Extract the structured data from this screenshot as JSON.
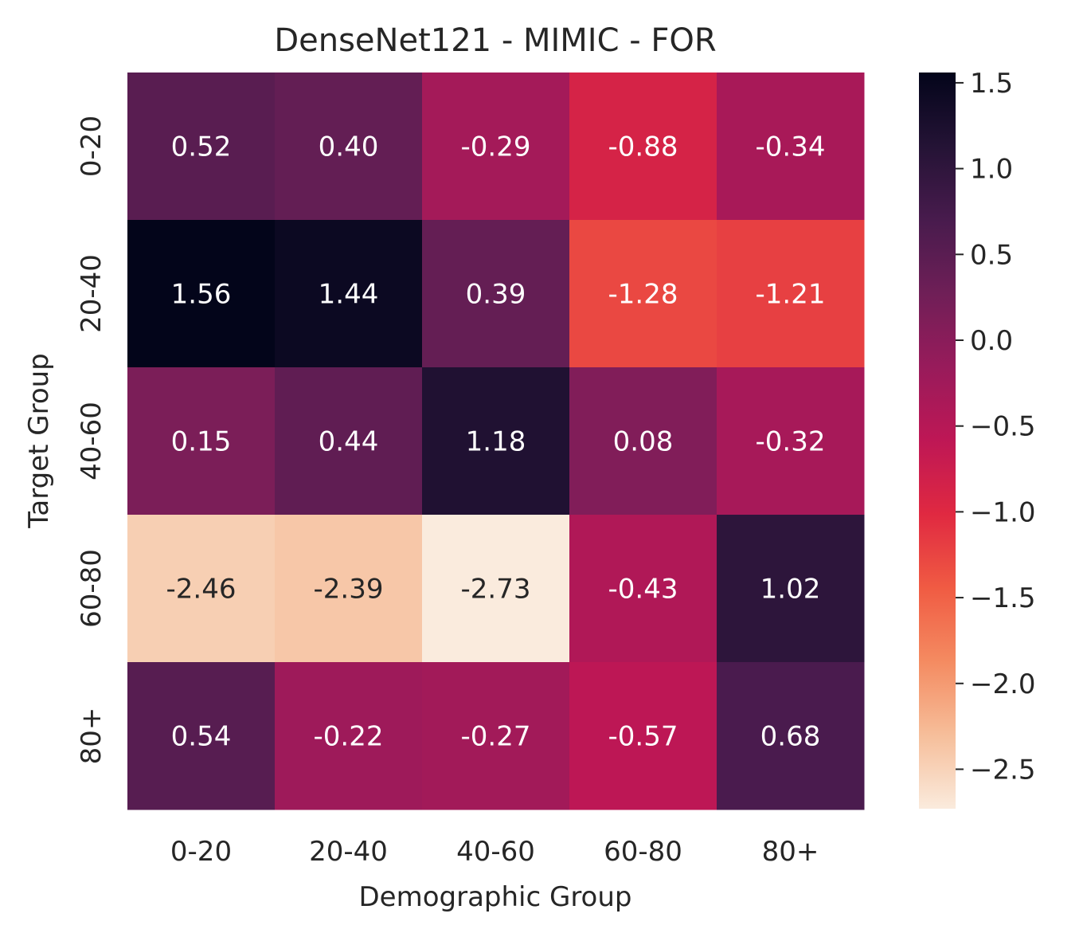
{
  "chart_data": {
    "type": "heatmap",
    "title": "DenseNet121 - MIMIC - FOR",
    "xlabel": "Demographic Group",
    "ylabel": "Target Group",
    "x_categories": [
      "0-20",
      "20-40",
      "40-60",
      "60-80",
      "80+"
    ],
    "y_categories": [
      "0-20",
      "20-40",
      "40-60",
      "60-80",
      "80+"
    ],
    "values": [
      [
        0.52,
        0.4,
        -0.29,
        -0.88,
        -0.34
      ],
      [
        1.56,
        1.44,
        0.39,
        -1.28,
        -1.21
      ],
      [
        0.15,
        0.44,
        1.18,
        0.08,
        -0.32
      ],
      [
        -2.46,
        -2.39,
        -2.73,
        -0.43,
        1.02
      ],
      [
        0.54,
        -0.22,
        -0.27,
        -0.57,
        0.68
      ]
    ],
    "value_labels": [
      [
        "0.52",
        "0.40",
        "-0.29",
        "-0.88",
        "-0.34"
      ],
      [
        "1.56",
        "1.44",
        "0.39",
        "-1.28",
        "-1.21"
      ],
      [
        "0.15",
        "0.44",
        "1.18",
        "0.08",
        "-0.32"
      ],
      [
        "-2.46",
        "-2.39",
        "-2.73",
        "-0.43",
        "1.02"
      ],
      [
        "0.54",
        "-0.22",
        "-0.27",
        "-0.57",
        "0.68"
      ]
    ],
    "colorbar": {
      "range": [
        -2.73,
        1.56
      ],
      "ticks": [
        1.5,
        1.0,
        0.5,
        0.0,
        -0.5,
        -1.0,
        -1.5,
        -2.0,
        -2.5
      ],
      "tick_labels": [
        "1.5",
        "1.0",
        "0.5",
        "0.0",
        "−0.5",
        "−1.0",
        "−1.5",
        "−2.0",
        "−2.5"
      ]
    },
    "colormap": "rocket_r",
    "grid": false
  }
}
